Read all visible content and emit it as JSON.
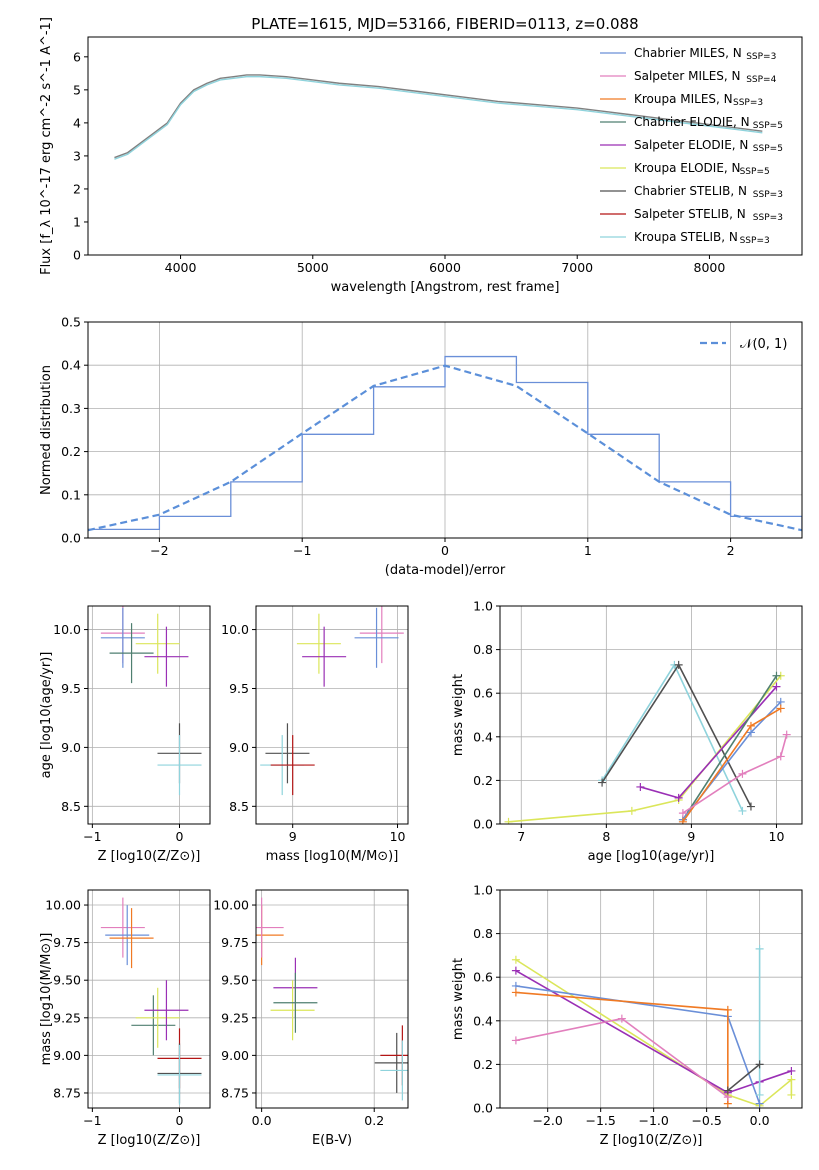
{
  "figure_title": "PLATE=1615, MJD=53166, FIBERID=0113, z=0.088",
  "models": [
    {
      "name": "Chabrier MILES",
      "nssp": "3",
      "color": "#6a8fd8"
    },
    {
      "name": "Salpeter MILES",
      "nssp": "4",
      "color": "#e27fbd"
    },
    {
      "name": "Kroupa MILES",
      "nssp": "3",
      "color": "#f07a24"
    },
    {
      "name": "Chabrier ELODIE",
      "nssp": "5",
      "color": "#4f7f70"
    },
    {
      "name": "Salpeter ELODIE",
      "nssp": "5",
      "color": "#9a2fb5"
    },
    {
      "name": "Kroupa ELODIE",
      "nssp": "5",
      "color": "#dbe65a"
    },
    {
      "name": "Chabrier STELIB",
      "nssp": "3",
      "color": "#505050"
    },
    {
      "name": "Salpeter STELIB",
      "nssp": "3",
      "color": "#b31515"
    },
    {
      "name": "Kroupa STELIB",
      "nssp": "3",
      "color": "#8fd3dc"
    }
  ],
  "chart_data": [
    {
      "id": "spectrum",
      "type": "line",
      "title": "PLATE=1615, MJD=53166, FIBERID=0113, z=0.088",
      "xlabel": "wavelength [Angstrom, rest frame]",
      "ylabel": "Flux [f_λ 10^-17 erg cm^-2 s^-1 A^-1]",
      "xlim": [
        3300,
        8700
      ],
      "ylim": [
        0,
        6.6
      ],
      "xticks": [
        4000,
        5000,
        6000,
        7000,
        8000
      ],
      "yticks": [
        0,
        1,
        2,
        3,
        4,
        5,
        6
      ],
      "grid": false,
      "legend": "right",
      "series": [
        {
          "name": "data",
          "color": "#808080",
          "x": [
            3500,
            3600,
            3700,
            3800,
            3900,
            4000,
            4100,
            4200,
            4300,
            4400,
            4500,
            4600,
            4800,
            5000,
            5200,
            5500,
            5800,
            6100,
            6400,
            6700,
            7000,
            7200,
            7400,
            7600,
            7800,
            8000,
            8200,
            8400
          ],
          "y": [
            2.95,
            3.1,
            3.4,
            3.7,
            4.0,
            4.6,
            5.0,
            5.2,
            5.35,
            5.4,
            5.45,
            5.45,
            5.4,
            5.3,
            5.2,
            5.1,
            4.95,
            4.8,
            4.65,
            4.55,
            4.45,
            4.35,
            4.25,
            4.15,
            4.05,
            3.95,
            3.85,
            3.75
          ]
        },
        {
          "name": "model",
          "color": "#8fd3dc",
          "x": [
            3500,
            3600,
            3700,
            3800,
            3900,
            4000,
            4100,
            4200,
            4300,
            4400,
            4500,
            4600,
            4800,
            5000,
            5200,
            5500,
            5800,
            6100,
            6400,
            6700,
            7000,
            7200,
            7400,
            7600,
            7800,
            8000,
            8200,
            8400
          ],
          "y": [
            2.9,
            3.05,
            3.35,
            3.65,
            3.95,
            4.55,
            4.95,
            5.15,
            5.3,
            5.35,
            5.4,
            5.4,
            5.35,
            5.25,
            5.15,
            5.05,
            4.9,
            4.75,
            4.6,
            4.5,
            4.4,
            4.3,
            4.2,
            4.1,
            4.0,
            3.9,
            3.8,
            3.7
          ]
        }
      ]
    },
    {
      "id": "residuals",
      "type": "line",
      "xlabel": "(data-model)/error",
      "ylabel": "Normed distribution",
      "xlim": [
        -2.5,
        2.5
      ],
      "ylim": [
        0,
        0.5
      ],
      "xticks": [
        -2,
        -1,
        0,
        1,
        2
      ],
      "yticks": [
        0.0,
        0.1,
        0.2,
        0.3,
        0.4,
        0.5
      ],
      "grid": true,
      "legend": "top-right",
      "legend_label": "𝒩(0, 1)",
      "series": [
        {
          "name": "histogram",
          "color": "#6a8fd8",
          "x": [
            -2.5,
            -2.0,
            -1.5,
            -1.0,
            -0.5,
            0.0,
            0.5,
            1.0,
            1.5,
            2.0,
            2.5
          ],
          "y": [
            0.02,
            0.05,
            0.13,
            0.24,
            0.35,
            0.42,
            0.36,
            0.24,
            0.13,
            0.05,
            0.02
          ]
        },
        {
          "name": "normal",
          "color": "#5b8fd9",
          "x": [
            -2.5,
            -2.0,
            -1.5,
            -1.0,
            -0.5,
            0.0,
            0.5,
            1.0,
            1.5,
            2.0,
            2.5
          ],
          "y": [
            0.018,
            0.054,
            0.13,
            0.242,
            0.352,
            0.399,
            0.352,
            0.242,
            0.13,
            0.054,
            0.018
          ]
        }
      ]
    },
    {
      "id": "age-vs-z",
      "type": "scatter",
      "xlabel": "Z [log10(Z/Z⊙)]",
      "ylabel": "age  [log10(age/yr)]",
      "xlim": [
        -1.05,
        0.35
      ],
      "ylim": [
        8.35,
        10.2
      ],
      "xticks": [
        -1,
        0
      ],
      "yticks": [
        8.5,
        9.0,
        9.5,
        10.0
      ],
      "grid": true,
      "points": [
        {
          "x": -0.65,
          "y": 9.97,
          "color": "#e27fbd"
        },
        {
          "x": -0.65,
          "y": 9.93,
          "color": "#6a8fd8"
        },
        {
          "x": -0.55,
          "y": 9.8,
          "color": "#4f7f70"
        },
        {
          "x": -0.25,
          "y": 9.88,
          "color": "#dbe65a"
        },
        {
          "x": -0.15,
          "y": 9.77,
          "color": "#9a2fb5"
        },
        {
          "x": 0.0,
          "y": 8.95,
          "color": "#505050"
        },
        {
          "x": 0.0,
          "y": 8.85,
          "color": "#8fd3dc"
        }
      ]
    },
    {
      "id": "age-vs-mass",
      "type": "scatter",
      "xlabel": "mass [log10(M/M⊙)]",
      "ylabel": "",
      "xlim": [
        8.65,
        10.1
      ],
      "ylim": [
        8.35,
        10.2
      ],
      "xticks": [
        9,
        10
      ],
      "yticks": [
        8.5,
        9.0,
        9.5,
        10.0
      ],
      "grid": true,
      "points": [
        {
          "x": 9.85,
          "y": 9.97,
          "color": "#e27fbd"
        },
        {
          "x": 9.8,
          "y": 9.93,
          "color": "#6a8fd8"
        },
        {
          "x": 9.25,
          "y": 9.88,
          "color": "#dbe65a"
        },
        {
          "x": 9.3,
          "y": 9.77,
          "color": "#9a2fb5"
        },
        {
          "x": 8.95,
          "y": 8.95,
          "color": "#505050"
        },
        {
          "x": 8.9,
          "y": 8.85,
          "color": "#8fd3dc"
        },
        {
          "x": 9.0,
          "y": 8.85,
          "color": "#b31515"
        }
      ]
    },
    {
      "id": "mass-weight-vs-age",
      "type": "line",
      "xlabel": "age  [log10(age/yr)]",
      "ylabel": "mass weight",
      "xlim": [
        6.75,
        10.3
      ],
      "ylim": [
        0,
        1
      ],
      "xticks": [
        7,
        8,
        9,
        10
      ],
      "yticks": [
        0.0,
        0.2,
        0.4,
        0.6,
        0.8,
        1.0
      ],
      "grid": true,
      "series": [
        {
          "name": "Kroupa STELIB",
          "color": "#8fd3dc",
          "x": [
            7.95,
            8.8,
            9.6
          ],
          "y": [
            0.2,
            0.73,
            0.06
          ]
        },
        {
          "name": "Chabrier STELIB",
          "color": "#505050",
          "x": [
            7.95,
            8.85,
            9.7
          ],
          "y": [
            0.19,
            0.73,
            0.08
          ]
        },
        {
          "name": "Kroupa ELODIE",
          "color": "#dbe65a",
          "x": [
            6.85,
            8.3,
            8.85,
            10.05
          ],
          "y": [
            0.01,
            0.06,
            0.11,
            0.68
          ]
        },
        {
          "name": "Salpeter ELODIE",
          "color": "#9a2fb5",
          "x": [
            8.4,
            8.85,
            10.0
          ],
          "y": [
            0.17,
            0.12,
            0.63
          ]
        },
        {
          "name": "Chabrier ELODIE",
          "color": "#4f7f70",
          "x": [
            8.9,
            10.0
          ],
          "y": [
            0.02,
            0.68
          ]
        },
        {
          "name": "Chabrier MILES",
          "color": "#6a8fd8",
          "x": [
            8.9,
            9.7,
            10.05
          ],
          "y": [
            0.02,
            0.42,
            0.56
          ]
        },
        {
          "name": "Kroupa MILES",
          "color": "#f07a24",
          "x": [
            8.9,
            9.7,
            10.05
          ],
          "y": [
            0.01,
            0.45,
            0.53
          ]
        },
        {
          "name": "Salpeter MILES",
          "color": "#e27fbd",
          "x": [
            8.9,
            9.6,
            10.05,
            10.12
          ],
          "y": [
            0.05,
            0.23,
            0.31,
            0.41
          ]
        }
      ]
    },
    {
      "id": "mass-vs-z",
      "type": "scatter",
      "xlabel": "Z [log10(Z/Z⊙)]",
      "ylabel": "mass [log10(M/M⊙)]",
      "xlim": [
        -1.05,
        0.35
      ],
      "ylim": [
        8.65,
        10.1
      ],
      "xticks": [
        -1,
        0
      ],
      "yticks": [
        8.75,
        9.0,
        9.25,
        9.5,
        9.75,
        10.0
      ],
      "grid": true,
      "points": [
        {
          "x": -0.65,
          "y": 9.85,
          "color": "#e27fbd"
        },
        {
          "x": -0.6,
          "y": 9.8,
          "color": "#6a8fd8"
        },
        {
          "x": -0.55,
          "y": 9.78,
          "color": "#f07a24"
        },
        {
          "x": -0.3,
          "y": 9.2,
          "color": "#4f7f70"
        },
        {
          "x": -0.25,
          "y": 9.25,
          "color": "#dbe65a"
        },
        {
          "x": -0.15,
          "y": 9.3,
          "color": "#9a2fb5"
        },
        {
          "x": 0.0,
          "y": 8.98,
          "color": "#b31515"
        },
        {
          "x": 0.0,
          "y": 8.88,
          "color": "#505050"
        },
        {
          "x": 0.0,
          "y": 8.87,
          "color": "#8fd3dc"
        }
      ]
    },
    {
      "id": "mass-vs-ebv",
      "type": "scatter",
      "xlabel": "E(B-V)",
      "ylabel": "",
      "xlim": [
        -0.01,
        0.26
      ],
      "ylim": [
        8.65,
        10.1
      ],
      "xticks": [
        0.0,
        0.2
      ],
      "yticks": [
        8.75,
        9.0,
        9.25,
        9.5,
        9.75,
        10.0
      ],
      "grid": true,
      "points": [
        {
          "x": 0.0,
          "y": 9.8,
          "color": "#f07a24"
        },
        {
          "x": 0.0,
          "y": 9.85,
          "color": "#e27fbd"
        },
        {
          "x": 0.06,
          "y": 9.45,
          "color": "#9a2fb5"
        },
        {
          "x": 0.055,
          "y": 9.3,
          "color": "#dbe65a"
        },
        {
          "x": 0.06,
          "y": 9.35,
          "color": "#4f7f70"
        },
        {
          "x": 0.24,
          "y": 8.95,
          "color": "#505050"
        },
        {
          "x": 0.25,
          "y": 9.0,
          "color": "#b31515"
        },
        {
          "x": 0.25,
          "y": 8.9,
          "color": "#8fd3dc"
        }
      ]
    },
    {
      "id": "mass-weight-vs-z",
      "type": "line",
      "xlabel": "Z [log10(Z/Z⊙)]",
      "ylabel": "mass weight",
      "xlim": [
        -2.45,
        0.4
      ],
      "ylim": [
        0,
        1
      ],
      "xticks": [
        -2.0,
        -1.5,
        -1.0,
        -0.5,
        0.0
      ],
      "yticks": [
        0.0,
        0.2,
        0.4,
        0.6,
        0.8,
        1.0
      ],
      "grid": true,
      "series": [
        {
          "name": "Kroupa ELODIE",
          "color": "#dbe65a",
          "x": [
            -2.3,
            -0.3,
            0.0,
            0.3,
            0.3
          ],
          "y": [
            0.68,
            0.06,
            0.01,
            0.13,
            0.06
          ]
        },
        {
          "name": "Salpeter ELODIE",
          "color": "#9a2fb5",
          "x": [
            -2.3,
            -0.3,
            0.0,
            0.3
          ],
          "y": [
            0.63,
            0.07,
            0.12,
            0.17
          ]
        },
        {
          "name": "Chabrier MILES",
          "color": "#6a8fd8",
          "x": [
            -2.3,
            -0.3,
            0.0
          ],
          "y": [
            0.56,
            0.42,
            0.02
          ]
        },
        {
          "name": "Kroupa MILES",
          "color": "#f07a24",
          "x": [
            -2.3,
            -0.3,
            -0.3
          ],
          "y": [
            0.53,
            0.45,
            0.02
          ]
        },
        {
          "name": "Salpeter MILES",
          "color": "#e27fbd",
          "x": [
            -2.3,
            -1.3,
            -0.3
          ],
          "y": [
            0.31,
            0.41,
            0.05
          ]
        },
        {
          "name": "Kroupa STELIB",
          "color": "#8fd3dc",
          "x": [
            0.0,
            0.0
          ],
          "y": [
            0.73,
            0.06
          ]
        },
        {
          "name": "Chabrier STELIB",
          "color": "#505050",
          "x": [
            -0.3,
            0.0
          ],
          "y": [
            0.08,
            0.2
          ]
        }
      ]
    }
  ]
}
